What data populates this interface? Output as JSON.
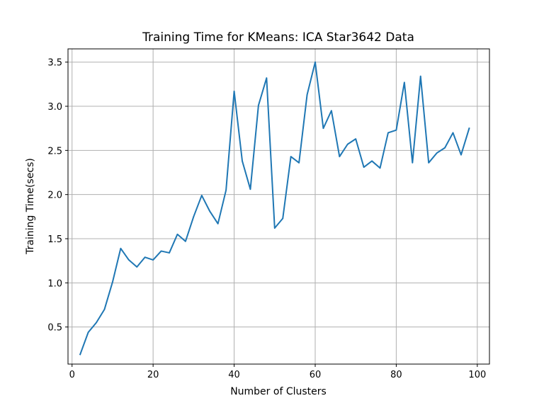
{
  "chart_data": {
    "type": "line",
    "title": "Training Time for KMeans: ICA Star3642 Data",
    "xlabel": "Number of Clusters",
    "ylabel": "Training Time(secs)",
    "xlim": [
      -1,
      103
    ],
    "ylim": [
      0.08,
      3.65
    ],
    "xticks": [
      0,
      20,
      40,
      60,
      80,
      100
    ],
    "xtick_labels": [
      "0",
      "20",
      "40",
      "60",
      "80",
      "100"
    ],
    "yticks": [
      0.5,
      1.0,
      1.5,
      2.0,
      2.5,
      3.0,
      3.5
    ],
    "ytick_labels": [
      "0.5",
      "1.0",
      "1.5",
      "2.0",
      "2.5",
      "3.0",
      "3.5"
    ],
    "grid": true,
    "series": [
      {
        "color": "#1f77b4",
        "x": [
          2,
          4,
          6,
          8,
          10,
          12,
          14,
          16,
          18,
          20,
          22,
          24,
          26,
          28,
          30,
          32,
          34,
          36,
          38,
          40,
          42,
          44,
          46,
          48,
          50,
          52,
          54,
          56,
          58,
          60,
          62,
          64,
          66,
          68,
          70,
          72,
          74,
          76,
          78,
          80,
          82,
          84,
          86,
          88,
          90,
          92,
          94,
          96,
          98
        ],
        "values": [
          0.19,
          0.44,
          0.55,
          0.7,
          1.01,
          1.39,
          1.26,
          1.18,
          1.29,
          1.26,
          1.36,
          1.34,
          1.55,
          1.47,
          1.75,
          1.99,
          1.81,
          1.67,
          2.05,
          3.17,
          2.38,
          2.06,
          3.01,
          3.32,
          1.62,
          1.73,
          2.43,
          2.36,
          3.13,
          3.5,
          2.75,
          2.95,
          2.43,
          2.57,
          2.63,
          2.31,
          2.38,
          2.3,
          2.7,
          2.73,
          3.27,
          2.36,
          3.34,
          2.36,
          2.47,
          2.53,
          2.7,
          2.45,
          2.75
        ]
      }
    ]
  }
}
